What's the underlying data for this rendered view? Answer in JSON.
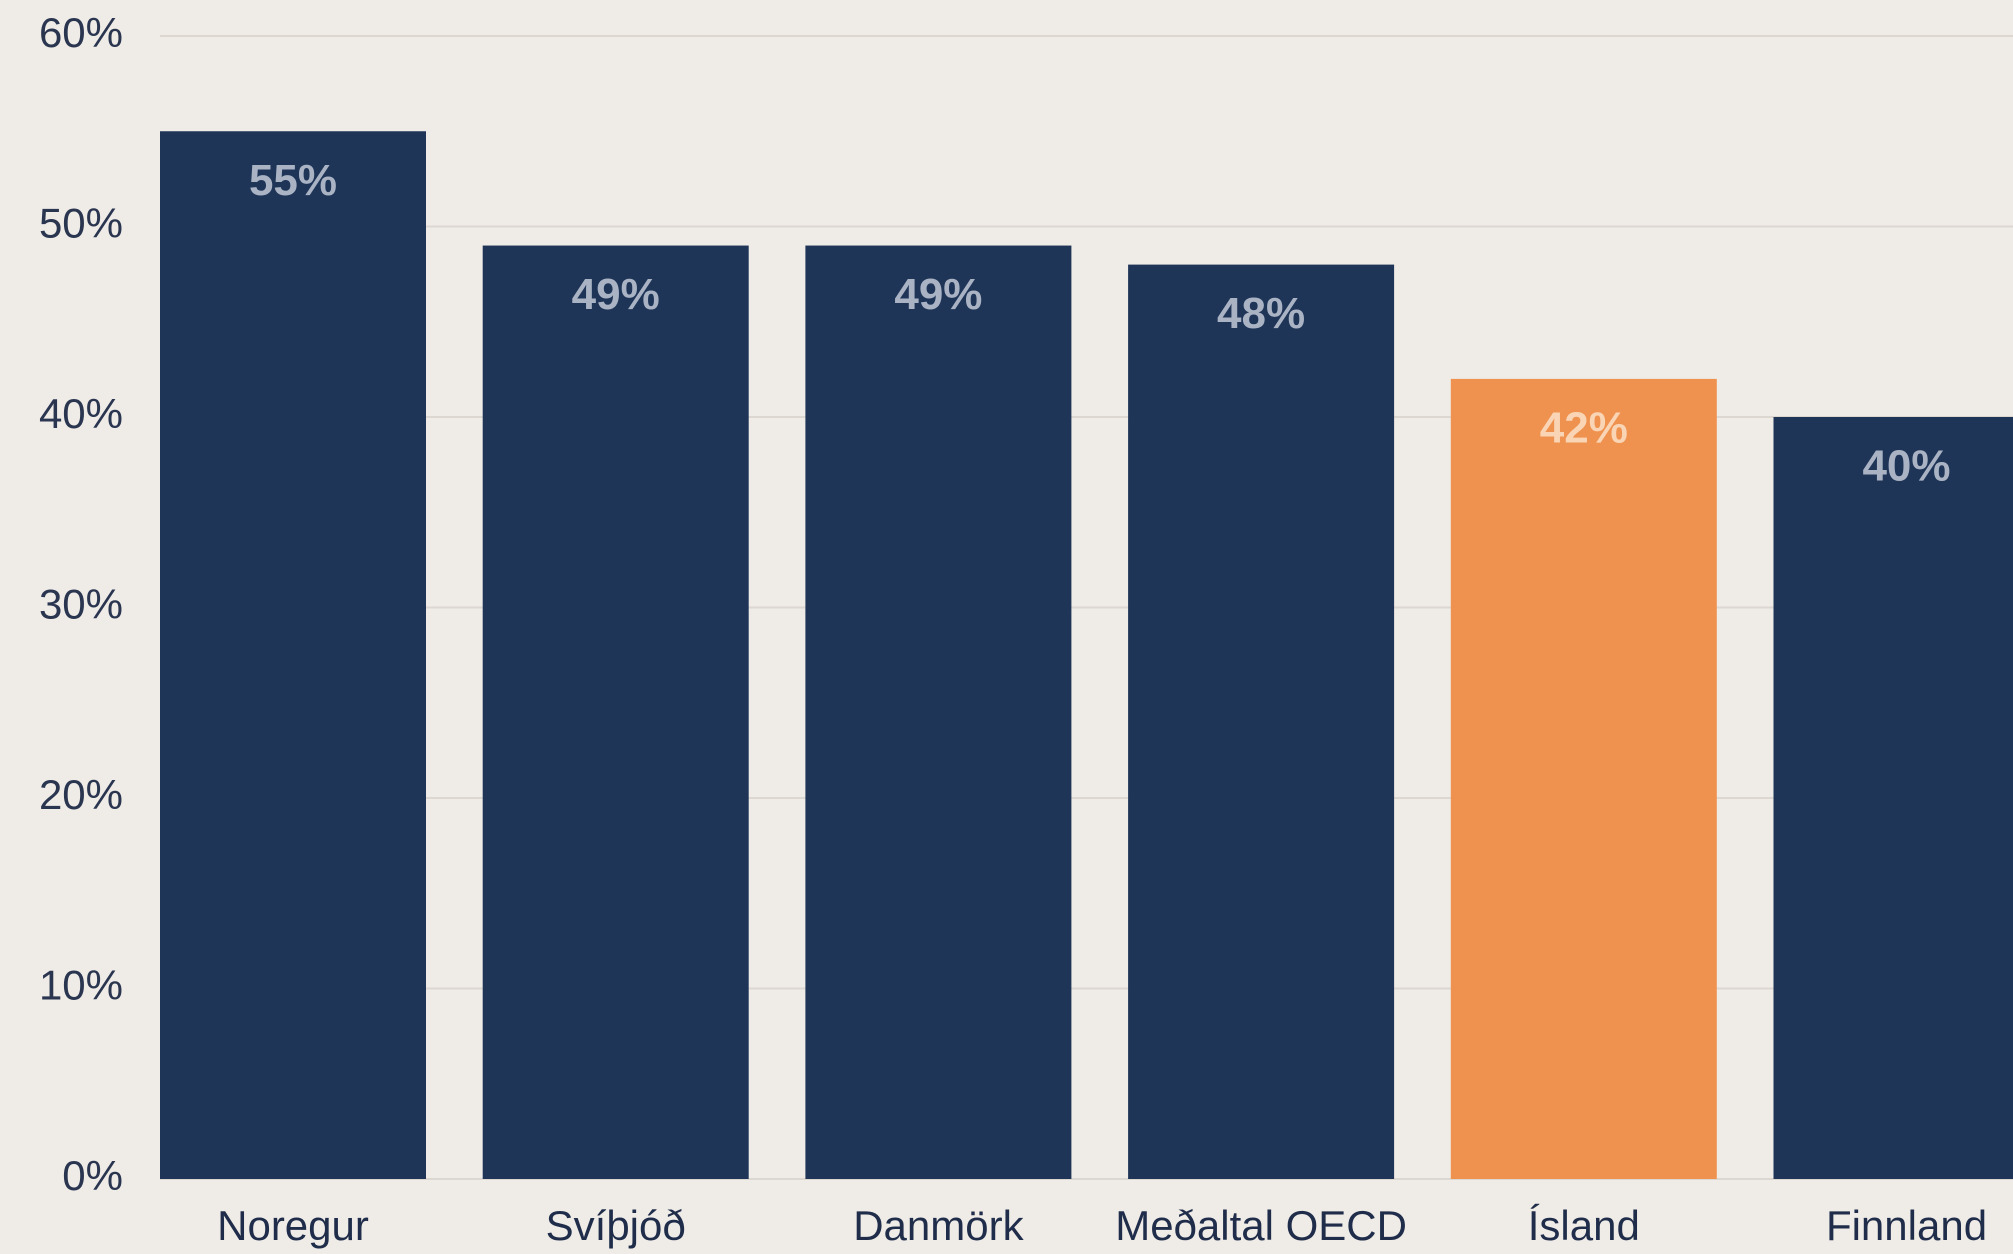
{
  "chart_data": {
    "type": "bar",
    "categories": [
      "Noregur",
      "Svíþjóð",
      "Danmörk",
      "Meðaltal OECD",
      "Ísland",
      "Finnland"
    ],
    "values": [
      55,
      49,
      49,
      48,
      42,
      40
    ],
    "value_labels": [
      "55%",
      "49%",
      "49%",
      "48%",
      "42%",
      "40%"
    ],
    "colors": [
      "#1f3558",
      "#1f3558",
      "#1f3558",
      "#1f3558",
      "#f0924f",
      "#1f3558"
    ],
    "ylim": [
      0,
      60
    ],
    "yticks": [
      {
        "value": 0,
        "label": "0%"
      },
      {
        "value": 10,
        "label": "10%"
      },
      {
        "value": 20,
        "label": "20%"
      },
      {
        "value": 30,
        "label": "30%"
      },
      {
        "value": 40,
        "label": "40%"
      },
      {
        "value": 50,
        "label": "50%"
      },
      {
        "value": 60,
        "label": "60%"
      }
    ],
    "grid": true
  }
}
